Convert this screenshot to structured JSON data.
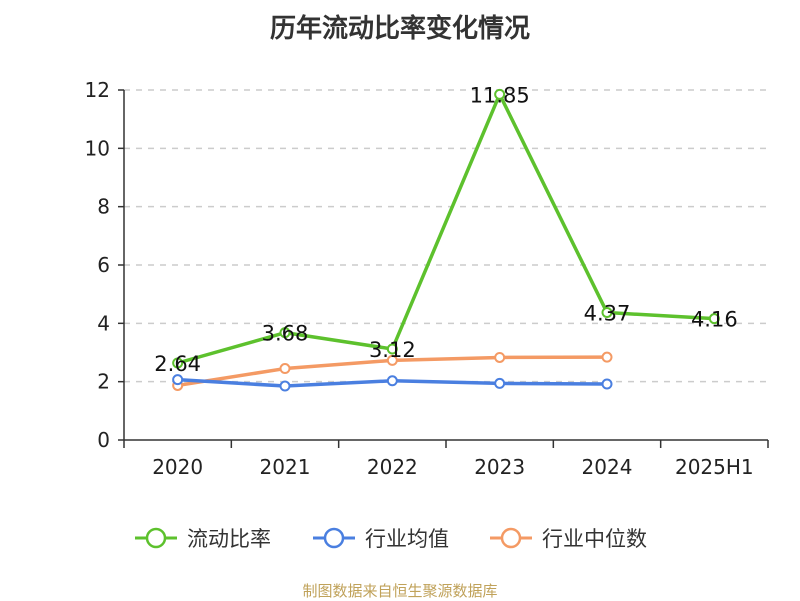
{
  "chart_data": {
    "type": "line",
    "title": "历年流动比率变化情况",
    "categories": [
      "2020",
      "2021",
      "2022",
      "2023",
      "2024",
      "2025H1"
    ],
    "ylim": [
      0,
      12
    ],
    "yticks": [
      0,
      2,
      4,
      6,
      8,
      10,
      12
    ],
    "grid": true,
    "legend_placement": "bottom",
    "series": [
      {
        "name": "流动比率",
        "color": "#5dc12d",
        "values": [
          2.64,
          3.68,
          3.12,
          11.85,
          4.37,
          4.16
        ],
        "labels": [
          "2.64",
          "3.68",
          "3.12",
          "11.85",
          "4.37",
          "4.16"
        ]
      },
      {
        "name": "行业均值",
        "color": "#4a7fe0",
        "values": [
          2.07,
          1.85,
          2.03,
          1.94,
          1.92,
          null
        ]
      },
      {
        "name": "行业中位数",
        "color": "#f49a64",
        "values": [
          1.87,
          2.45,
          2.73,
          2.83,
          2.84,
          null
        ]
      }
    ]
  },
  "source": "制图数据来自恒生聚源数据库"
}
